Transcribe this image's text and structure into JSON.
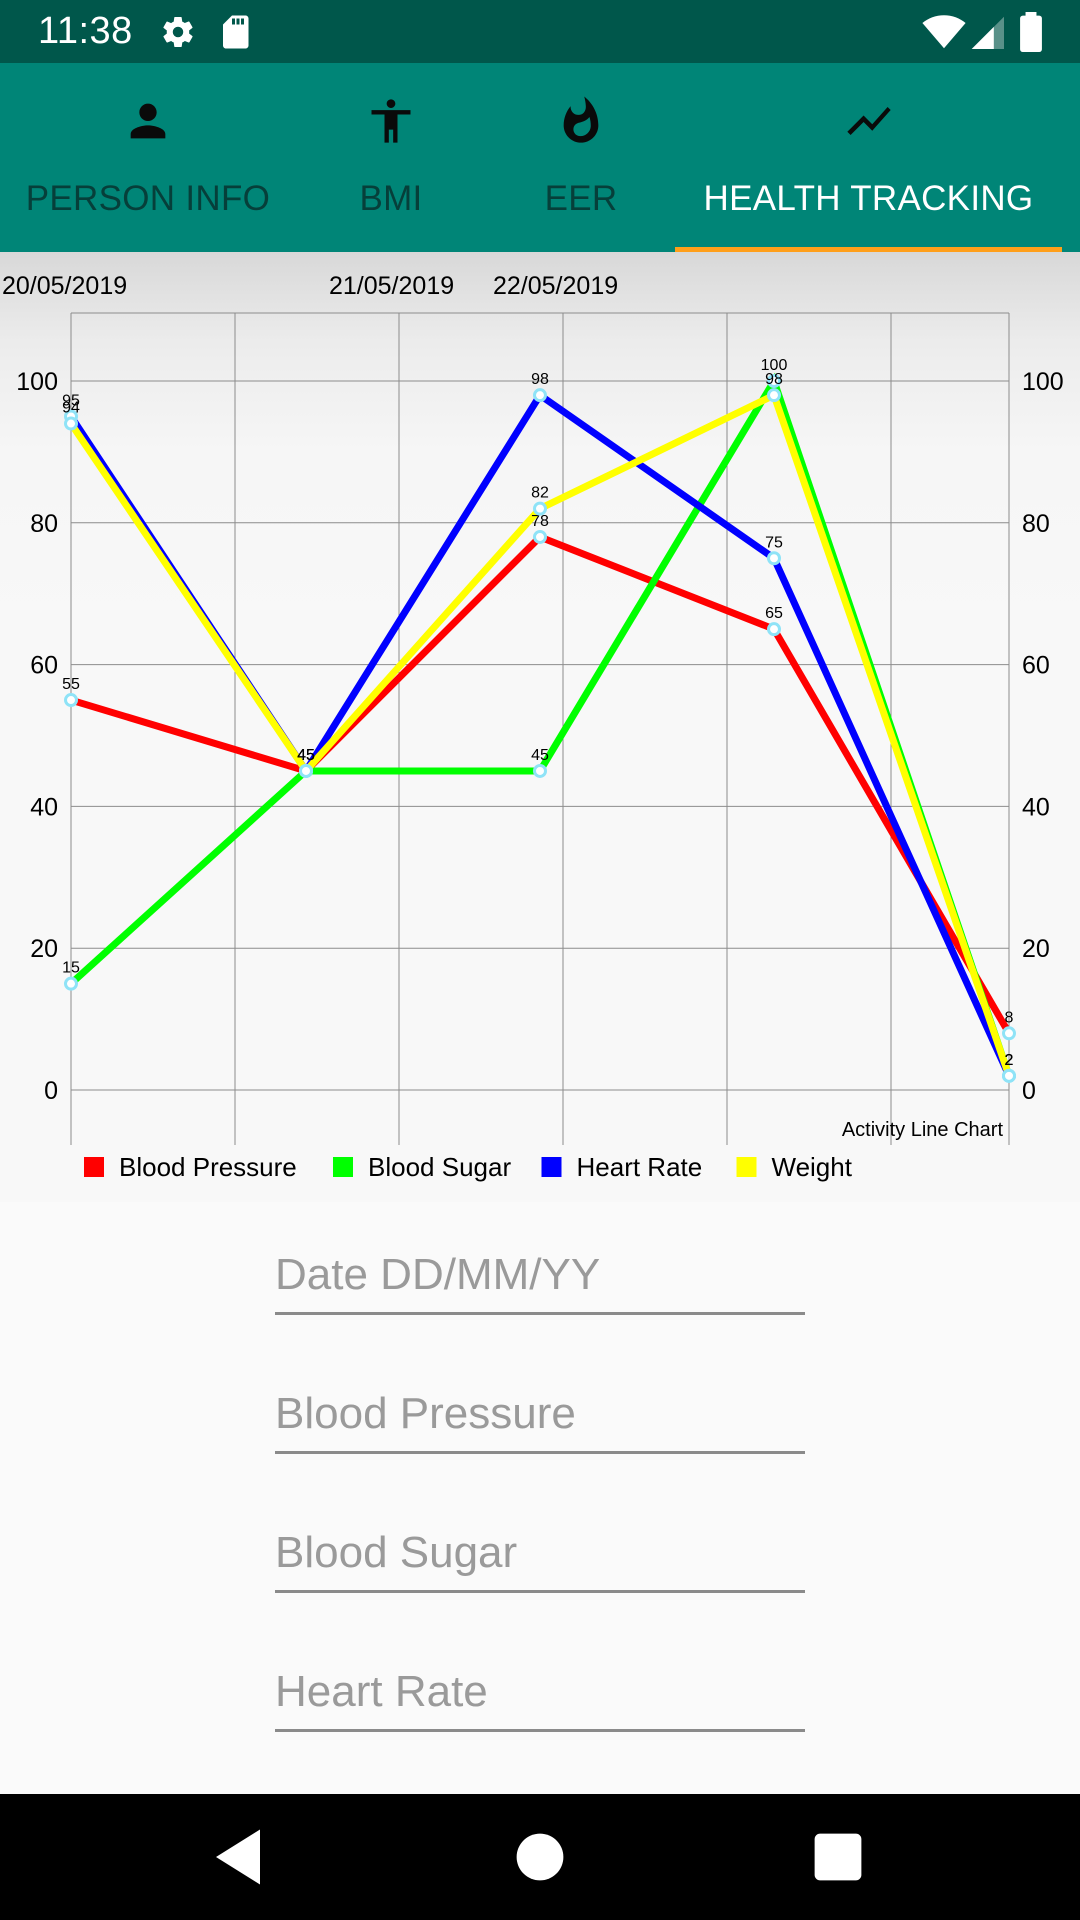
{
  "status_bar": {
    "time": "11:38"
  },
  "tabs": [
    {
      "label": "PERSON INFO",
      "icon": "person-icon",
      "active": false
    },
    {
      "label": "BMI",
      "icon": "accessibility-icon",
      "active": false
    },
    {
      "label": "EER",
      "icon": "flame-icon",
      "active": false
    },
    {
      "label": "HEALTH TRACKING",
      "icon": "trending-icon",
      "active": true
    }
  ],
  "colors": {
    "status_bar": "#00574b",
    "tab_bar": "#008577",
    "indicator": "#ff9f1a"
  },
  "chart_data": {
    "type": "line",
    "description": "Activity Line Chart",
    "date_labels": [
      "20/05/2019",
      "21/05/2019",
      "22/05/2019"
    ],
    "ylim": [
      0,
      110
    ],
    "y_ticks": [
      0,
      20,
      40,
      60,
      80,
      100
    ],
    "grid": true,
    "legend_position": "bottom-left",
    "series": [
      {
        "name": "Blood Pressure",
        "color": "#ff0000",
        "values": [
          55,
          45,
          78,
          65,
          8
        ]
      },
      {
        "name": "Blood Sugar",
        "color": "#00ff00",
        "values": [
          15,
          45,
          45,
          100,
          2
        ]
      },
      {
        "name": "Heart Rate",
        "color": "#0000ff",
        "values": [
          95,
          45,
          98,
          75,
          2
        ]
      },
      {
        "name": "Weight",
        "color": "#ffff00",
        "values": [
          94,
          45,
          82,
          98,
          2
        ]
      }
    ]
  },
  "form": {
    "date_placeholder": "Date DD/MM/YY",
    "blood_pressure_placeholder": "Blood Pressure",
    "blood_sugar_placeholder": "Blood Sugar",
    "heart_rate_placeholder": "Heart Rate"
  }
}
